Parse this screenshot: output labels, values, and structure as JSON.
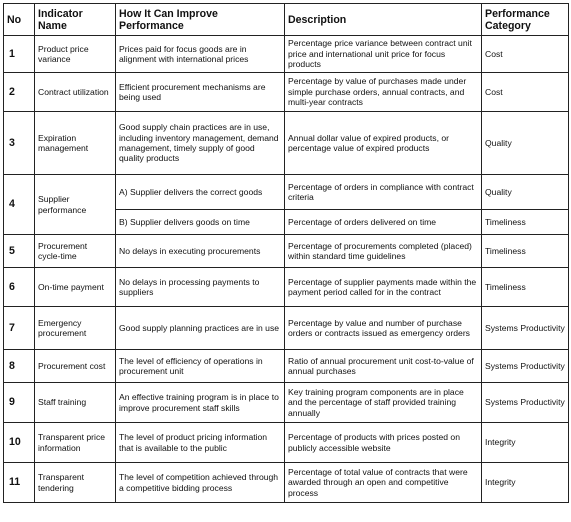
{
  "headers": {
    "no": "No",
    "indicator": "Indicator Name",
    "how": "How It Can Improve Performance",
    "description": "Description",
    "category": "Performance Category"
  },
  "rows": [
    {
      "no": "1",
      "indicator": "Product price variance",
      "how": "Prices paid for focus goods are in alignment with international prices",
      "description": "Percentage price variance between contract unit price and international unit price for focus products",
      "category": "Cost"
    },
    {
      "no": "2",
      "indicator": "Contract utilization",
      "how": "Efficient procurement mechanisms are being used",
      "description": "Percentage by value of purchases made under simple purchase orders, annual contracts, and multi-year contracts",
      "category": "Cost"
    },
    {
      "no": "3",
      "indicator": "Expiration management",
      "how": "Good supply chain practices are in use, including inventory management, demand management, timely supply of good quality products",
      "description": "Annual dollar value of expired products, or percentage value of expired products",
      "category": "Quality"
    },
    {
      "no": "4",
      "indicator": "Supplier performance",
      "how_a": "A) Supplier delivers the correct goods",
      "description_a": "Percentage of orders in compliance with contract criteria",
      "category_a": "Quality",
      "how_b": "B) Supplier delivers goods on time",
      "description_b": "Percentage of orders delivered on time",
      "category_b": "Timeliness"
    },
    {
      "no": "5",
      "indicator": "Procurement cycle-time",
      "how": "No delays in executing procurements",
      "description": "Percentage of procurements completed (placed) within standard time guidelines",
      "category": "Timeliness"
    },
    {
      "no": "6",
      "indicator": "On-time payment",
      "how": "No delays in processing payments to suppliers",
      "description": "Percentage of supplier payments made within the payment period called for in the contract",
      "category": "Timeliness"
    },
    {
      "no": "7",
      "indicator": "Emergency procurement",
      "how": "Good supply planning practices are in use",
      "description": "Percentage by value and number of purchase orders or contracts issued as emergency orders",
      "category": "Systems Productivity"
    },
    {
      "no": "8",
      "indicator": "Procurement cost",
      "how": "The level of efficiency of operations in procurement unit",
      "description": "Ratio of annual procurement unit cost-to-value of annual purchases",
      "category": "Systems Productivity"
    },
    {
      "no": "9",
      "indicator": "Staff training",
      "how": "An effective training program is in place to improve procurement staff skills",
      "description": "Key training program components are in place and the percentage of staff provided training annually",
      "category": "Systems Productivity"
    },
    {
      "no": "10",
      "indicator": "Transparent price information",
      "how": "The level of product pricing information that is available to the public",
      "description": "Percentage of products with prices posted on publicly accessible website",
      "category": "Integrity"
    },
    {
      "no": "11",
      "indicator": "Transparent tendering",
      "how": "The level of competition achieved through a competitive bidding process",
      "description": "Percentage of total value of contracts that were awarded through an open and competitive process",
      "category": "Integrity"
    }
  ]
}
